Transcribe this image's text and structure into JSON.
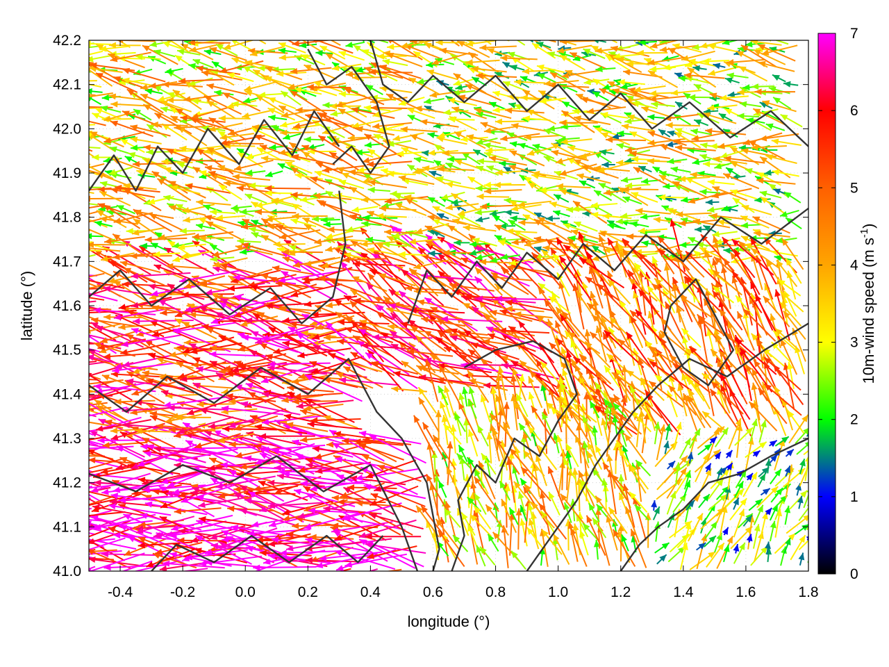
{
  "chart_data": {
    "type": "vector_field",
    "title": "",
    "xlabel": "longitude (°)",
    "ylabel": "latitude (°)",
    "xlim": [
      -0.5,
      1.8
    ],
    "ylim": [
      41.0,
      42.2
    ],
    "x_ticks": [
      -0.4,
      -0.2,
      0.0,
      0.2,
      0.4,
      0.6,
      0.8,
      1.0,
      1.2,
      1.4,
      1.6,
      1.8
    ],
    "x_tick_labels": [
      "-0.4",
      "-0.2",
      "0.0",
      "0.2",
      "0.4",
      "0.6",
      "0.8",
      "1.0",
      "1.2",
      "1.4",
      "1.6",
      "1.8"
    ],
    "y_ticks": [
      41.0,
      41.1,
      41.2,
      41.3,
      41.4,
      41.5,
      41.6,
      41.7,
      41.8,
      41.9,
      42.0,
      42.1,
      42.2
    ],
    "y_tick_labels": [
      "41.0",
      "41.1",
      "41.2",
      "41.3",
      "41.4",
      "41.5",
      "41.6",
      "41.7",
      "41.8",
      "41.9",
      "42.0",
      "42.1",
      "42.2"
    ],
    "grid": true,
    "colorbar": {
      "label_main": "10m-wind speed (m s",
      "label_sup": "-1",
      "label_close": ")",
      "range": [
        0,
        7
      ],
      "ticks": [
        0,
        1,
        2,
        3,
        4,
        5,
        6,
        7
      ],
      "tick_labels": [
        "0",
        "1",
        "2",
        "3",
        "4",
        "5",
        "6",
        "7"
      ],
      "stops": [
        {
          "value": 0.0,
          "color": "#000000"
        },
        {
          "value": 1.0,
          "color": "#0000ff"
        },
        {
          "value": 1.5,
          "color": "#008080"
        },
        {
          "value": 2.0,
          "color": "#00ff00"
        },
        {
          "value": 3.0,
          "color": "#ffff00"
        },
        {
          "value": 4.0,
          "color": "#ffa500"
        },
        {
          "value": 5.0,
          "color": "#ff6000"
        },
        {
          "value": 6.0,
          "color": "#ff0000"
        },
        {
          "value": 7.0,
          "color": "#ff00ff"
        }
      ]
    },
    "vectors_region_summary": [
      {
        "lon": [
          -0.5,
          0.6
        ],
        "lat": [
          41.0,
          41.3
        ],
        "u": -5.8,
        "v": 0.4,
        "speed": 6.5
      },
      {
        "lon": [
          -0.5,
          0.4
        ],
        "lat": [
          41.3,
          41.7
        ],
        "u": -5.2,
        "v": 0.6,
        "speed": 5.5
      },
      {
        "lon": [
          0.4,
          1.0
        ],
        "lat": [
          41.4,
          41.7
        ],
        "u": -4.0,
        "v": 2.0,
        "speed": 5.5
      },
      {
        "lon": [
          -0.5,
          0.6
        ],
        "lat": [
          41.7,
          42.2
        ],
        "u": -3.0,
        "v": 0.5,
        "speed": 3.5
      },
      {
        "lon": [
          0.6,
          1.8
        ],
        "lat": [
          41.7,
          42.2
        ],
        "u": -2.5,
        "v": 0.4,
        "speed": 3.0
      },
      {
        "lon": [
          1.0,
          1.8
        ],
        "lat": [
          41.3,
          41.7
        ],
        "u": -1.5,
        "v": 2.5,
        "speed": 4.5
      },
      {
        "lon": [
          0.6,
          1.3
        ],
        "lat": [
          41.0,
          41.4
        ],
        "u": -0.5,
        "v": 1.5,
        "speed": 3.5
      },
      {
        "lon": [
          1.3,
          1.8
        ],
        "lat": [
          41.0,
          41.3
        ],
        "u": 0.8,
        "v": 1.4,
        "speed": 2.5
      }
    ],
    "contours": [
      {
        "kind": "terrain",
        "color": "#333333",
        "points": [
          [
            -0.5,
            41.22
          ],
          [
            -0.35,
            41.18
          ],
          [
            -0.2,
            41.24
          ],
          [
            -0.05,
            41.2
          ],
          [
            0.1,
            41.26
          ],
          [
            0.25,
            41.18
          ],
          [
            0.4,
            41.24
          ],
          [
            0.5,
            41.1
          ],
          [
            0.55,
            41.0
          ]
        ]
      },
      {
        "kind": "terrain",
        "color": "#333333",
        "points": [
          [
            -0.5,
            41.42
          ],
          [
            -0.38,
            41.36
          ],
          [
            -0.25,
            41.44
          ],
          [
            -0.1,
            41.38
          ],
          [
            0.05,
            41.46
          ],
          [
            0.2,
            41.4
          ],
          [
            0.33,
            41.48
          ],
          [
            0.42,
            41.36
          ],
          [
            0.5,
            41.3
          ],
          [
            0.58,
            41.2
          ],
          [
            0.62,
            41.05
          ],
          [
            0.6,
            41.0
          ]
        ]
      },
      {
        "kind": "terrain",
        "color": "#333333",
        "points": [
          [
            -0.5,
            41.62
          ],
          [
            -0.4,
            41.68
          ],
          [
            -0.3,
            41.6
          ],
          [
            -0.18,
            41.66
          ],
          [
            -0.05,
            41.58
          ],
          [
            0.08,
            41.64
          ],
          [
            0.18,
            41.56
          ],
          [
            0.28,
            41.62
          ],
          [
            0.32,
            41.74
          ],
          [
            0.3,
            41.86
          ]
        ]
      },
      {
        "kind": "terrain",
        "color": "#333333",
        "points": [
          [
            -0.5,
            41.86
          ],
          [
            -0.42,
            41.94
          ],
          [
            -0.35,
            41.86
          ],
          [
            -0.28,
            41.96
          ],
          [
            -0.2,
            41.9
          ],
          [
            -0.12,
            42.0
          ],
          [
            -0.02,
            41.92
          ],
          [
            0.06,
            42.02
          ],
          [
            0.15,
            41.94
          ],
          [
            0.22,
            42.04
          ],
          [
            0.3,
            41.96
          ]
        ]
      },
      {
        "kind": "terrain",
        "color": "#333333",
        "points": [
          [
            0.4,
            42.2
          ],
          [
            0.44,
            42.1
          ],
          [
            0.52,
            42.06
          ],
          [
            0.6,
            42.12
          ],
          [
            0.7,
            42.06
          ],
          [
            0.8,
            42.12
          ],
          [
            0.9,
            42.04
          ],
          [
            1.0,
            42.1
          ],
          [
            1.1,
            42.02
          ],
          [
            1.2,
            42.08
          ],
          [
            1.3,
            42.0
          ],
          [
            1.42,
            42.06
          ],
          [
            1.55,
            41.98
          ],
          [
            1.68,
            42.04
          ],
          [
            1.8,
            41.96
          ]
        ]
      },
      {
        "kind": "terrain",
        "color": "#333333",
        "points": [
          [
            0.52,
            41.56
          ],
          [
            0.58,
            41.68
          ],
          [
            0.66,
            41.62
          ],
          [
            0.74,
            41.7
          ],
          [
            0.82,
            41.64
          ],
          [
            0.9,
            41.72
          ],
          [
            1.0,
            41.66
          ],
          [
            1.08,
            41.74
          ],
          [
            1.18,
            41.68
          ],
          [
            1.28,
            41.76
          ],
          [
            1.4,
            41.7
          ],
          [
            1.52,
            41.8
          ],
          [
            1.65,
            41.74
          ],
          [
            1.8,
            41.82
          ]
        ]
      },
      {
        "kind": "terrain",
        "color": "#333333",
        "points": [
          [
            0.66,
            41.0
          ],
          [
            0.7,
            41.08
          ],
          [
            0.68,
            41.16
          ],
          [
            0.74,
            41.24
          ],
          [
            0.8,
            41.2
          ],
          [
            0.86,
            41.3
          ],
          [
            0.94,
            41.26
          ],
          [
            1.0,
            41.34
          ],
          [
            1.06,
            41.4
          ],
          [
            1.02,
            41.48
          ],
          [
            0.92,
            41.52
          ],
          [
            0.8,
            41.5
          ],
          [
            0.7,
            41.46
          ]
        ]
      },
      {
        "kind": "terrain",
        "color": "#333333",
        "points": [
          [
            0.9,
            41.0
          ],
          [
            0.98,
            41.08
          ],
          [
            1.06,
            41.16
          ],
          [
            1.12,
            41.24
          ],
          [
            1.18,
            41.3
          ],
          [
            1.24,
            41.36
          ],
          [
            1.32,
            41.42
          ],
          [
            1.42,
            41.48
          ],
          [
            1.54,
            41.44
          ],
          [
            1.66,
            41.5
          ],
          [
            1.8,
            41.56
          ]
        ]
      },
      {
        "kind": "terrain",
        "color": "#333333",
        "points": [
          [
            1.2,
            41.0
          ],
          [
            1.26,
            41.06
          ],
          [
            1.32,
            41.1
          ],
          [
            1.4,
            41.14
          ],
          [
            1.48,
            41.2
          ],
          [
            1.58,
            41.22
          ],
          [
            1.68,
            41.26
          ],
          [
            1.8,
            41.3
          ]
        ]
      },
      {
        "kind": "terrain",
        "color": "#333333",
        "points": [
          [
            1.36,
            41.6
          ],
          [
            1.44,
            41.66
          ],
          [
            1.5,
            41.58
          ],
          [
            1.56,
            41.5
          ],
          [
            1.48,
            41.42
          ],
          [
            1.4,
            41.46
          ],
          [
            1.34,
            41.54
          ],
          [
            1.36,
            41.6
          ]
        ]
      },
      {
        "kind": "terrain",
        "color": "#333333",
        "points": [
          [
            -0.3,
            41.0
          ],
          [
            -0.22,
            41.06
          ],
          [
            -0.1,
            41.02
          ],
          [
            0.02,
            41.08
          ],
          [
            0.14,
            41.02
          ],
          [
            0.26,
            41.08
          ],
          [
            0.36,
            41.02
          ],
          [
            0.44,
            41.08
          ]
        ]
      },
      {
        "kind": "terrain",
        "color": "#333333",
        "points": [
          [
            0.2,
            42.18
          ],
          [
            0.26,
            42.1
          ],
          [
            0.34,
            42.14
          ],
          [
            0.42,
            42.06
          ],
          [
            0.46,
            41.96
          ],
          [
            0.4,
            41.9
          ],
          [
            0.34,
            41.96
          ],
          [
            0.28,
            41.92
          ]
        ]
      }
    ]
  }
}
